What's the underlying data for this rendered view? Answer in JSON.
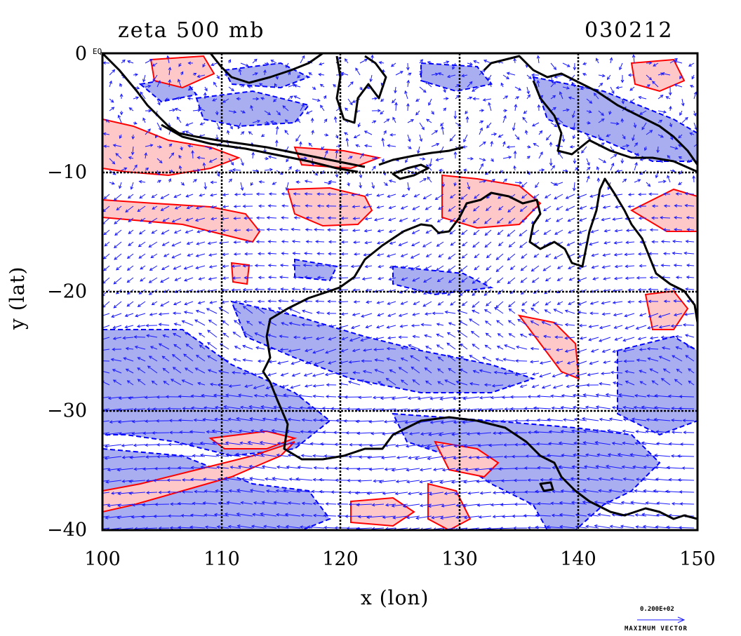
{
  "chart_data": {
    "type": "contour",
    "title_left": "zeta 500 mb",
    "title_right": "030212",
    "xlabel": "x (lon)",
    "ylabel": "y (lat)",
    "xlim": [
      100,
      150
    ],
    "ylim": [
      -40,
      0
    ],
    "xticks": [
      100,
      110,
      120,
      130,
      140,
      150
    ],
    "yticks": [
      0,
      -10,
      -20,
      -30,
      -40
    ],
    "ytick_labels": [
      "0",
      "−10",
      "−20",
      "−30",
      "−40"
    ],
    "corner_label": "EQ",
    "grid": true,
    "series": [
      {
        "name": "",
        "color": "#ff0000",
        "fill": "#ffc8c8",
        "style": "solid"
      },
      {
        "name": "",
        "color": "#0000ff",
        "fill": "#a8aef0",
        "style": "dashed"
      }
    ],
    "vector_scale": "0.200E+02",
    "vector_label": "MAXIMUM VECTOR"
  },
  "colors": {
    "positive_line": "#ff0000",
    "positive_fill": "#ffc8c8",
    "negative_line": "#0000ff",
    "negative_fill": "#a8aef0",
    "coast": "#000000",
    "vectors": "#1a1aff"
  }
}
